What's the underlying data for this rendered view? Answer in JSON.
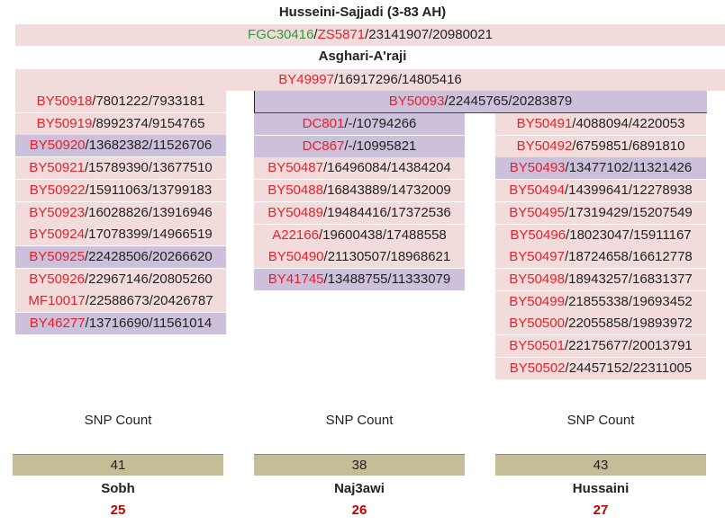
{
  "header": {
    "title": "Husseini-Sajjadi (3-83 AH)",
    "line1": {
      "a": "FGC30416",
      "b": "ZS5871",
      "rest": "23141907/20980021"
    },
    "subtitle": "Asghari-A'raji",
    "line2": {
      "a": "BY49997",
      "rest": "16917296/14805416"
    }
  },
  "middle_top": {
    "snp": "BY50093",
    "rest": "22445765/20283879"
  },
  "colors": {
    "pink": "#f2dcdb",
    "lavender": "#ccc0da",
    "red": "#e8202a",
    "green": "#2e9c3b",
    "tan": "#c4bd97"
  },
  "columns": [
    {
      "rows": [
        {
          "snp": "BY50918",
          "rest": "7801222/7933181",
          "bg": "pink"
        },
        {
          "snp": "BY50919",
          "rest": "8992374/9154765",
          "bg": "pink"
        },
        {
          "snp": "BY50920",
          "rest": "13682382/11526706",
          "bg": "lav"
        },
        {
          "snp": "BY50921",
          "rest": "15789390/13677510",
          "bg": "pink"
        },
        {
          "snp": "BY50922",
          "rest": "15911063/13799183",
          "bg": "pink"
        },
        {
          "snp": "BY50923",
          "rest": "16028826/13916946",
          "bg": "pink"
        },
        {
          "snp": "BY50924",
          "rest": "17078399/14966519",
          "bg": "pink"
        },
        {
          "snp": "BY50925",
          "rest": "22428506/20266620",
          "bg": "lav"
        },
        {
          "snp": "BY50926",
          "rest": "22967146/20805260",
          "bg": "pink"
        },
        {
          "snp": "MF10017",
          "rest": "22588673/20426787",
          "bg": "pink"
        },
        {
          "snp": "BY46277",
          "rest": "13716690/11561014",
          "bg": "lav"
        }
      ],
      "snp_label": "SNP Count",
      "count": "41",
      "name": "Sobh",
      "number": "25"
    },
    {
      "rows": [
        {
          "snp": "DC801",
          "rest": "-/10794266",
          "bg": "lav"
        },
        {
          "snp": "DC867",
          "rest": "-/10995821",
          "bg": "lav"
        },
        {
          "snp": "BY50487",
          "rest": "16496084/14384204",
          "bg": "pink"
        },
        {
          "snp": "BY50488",
          "rest": "16843889/14732009",
          "bg": "pink"
        },
        {
          "snp": "BY50489",
          "rest": "19484416/17372536",
          "bg": "pink"
        },
        {
          "snp": "A22166",
          "rest": "19600438/17488558",
          "bg": "pink"
        },
        {
          "snp": "BY50490",
          "rest": "21130507/18968621",
          "bg": "pink"
        },
        {
          "snp": "BY41745",
          "rest": "13488755/11333079",
          "bg": "lav"
        }
      ],
      "snp_label": "SNP Count",
      "count": "38",
      "name": "Naj3awi",
      "number": "26"
    },
    {
      "rows": [
        {
          "snp": "BY50491",
          "rest": "4088094/4220053",
          "bg": "pink"
        },
        {
          "snp": "BY50492",
          "rest": "6759851/6891810",
          "bg": "pink"
        },
        {
          "snp": "BY50493",
          "rest": "13477102/11321426",
          "bg": "lav"
        },
        {
          "snp": "BY50494",
          "rest": "14399641/12278938",
          "bg": "pink"
        },
        {
          "snp": "BY50495",
          "rest": "17319429/15207549",
          "bg": "pink"
        },
        {
          "snp": "BY50496",
          "rest": "18023047/15911167",
          "bg": "pink"
        },
        {
          "snp": "BY50497",
          "rest": "18724658/16612778",
          "bg": "pink"
        },
        {
          "snp": "BY50498",
          "rest": "18943257/16831377",
          "bg": "pink"
        },
        {
          "snp": "BY50499",
          "rest": "21855338/19693452",
          "bg": "pink"
        },
        {
          "snp": "BY50500",
          "rest": "22055858/19893972",
          "bg": "pink"
        },
        {
          "snp": "BY50501",
          "rest": "22175677/20013791",
          "bg": "pink"
        },
        {
          "snp": "BY50502",
          "rest": "24457152/22311005",
          "bg": "pink"
        }
      ],
      "snp_label": "SNP Count",
      "count": "43",
      "name": "Hussaini",
      "number": "27"
    }
  ]
}
